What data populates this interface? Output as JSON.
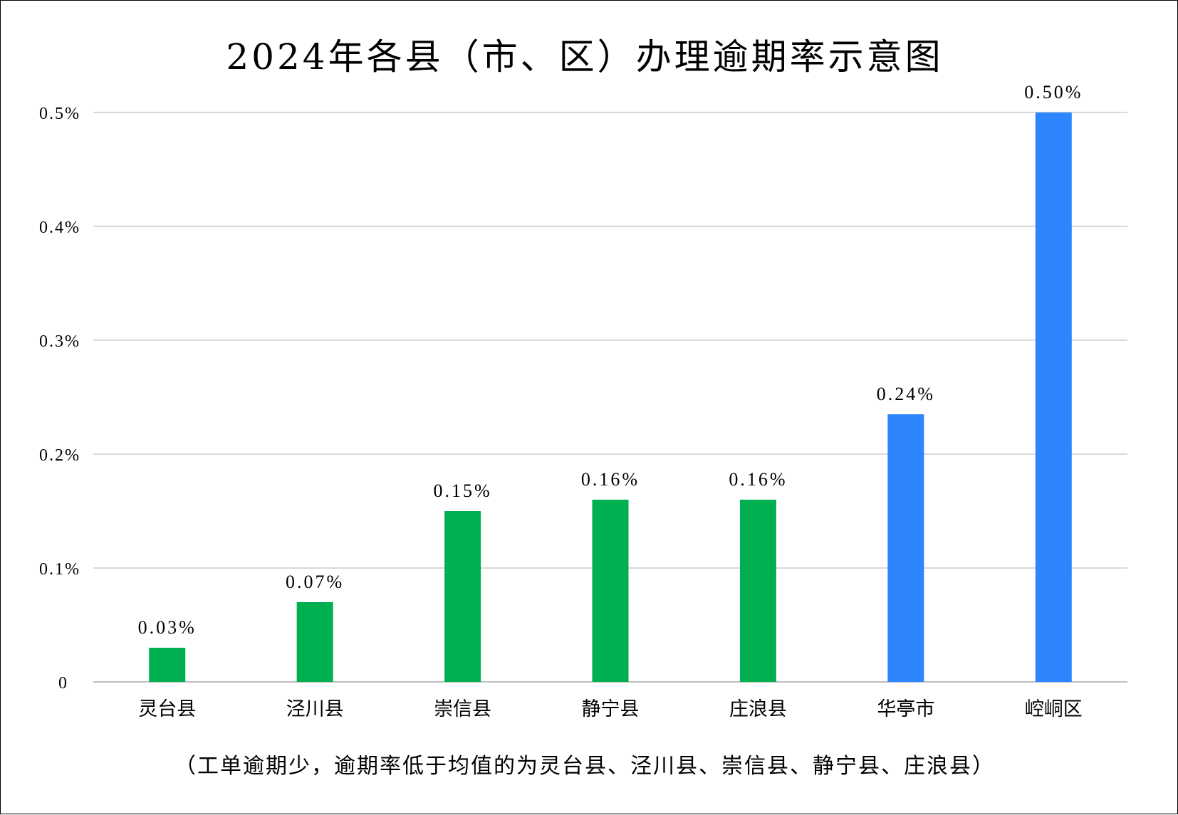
{
  "chart_data": {
    "type": "bar",
    "title": "2024年各县（市、区）办理逾期率示意图",
    "categories": [
      "灵台县",
      "泾川县",
      "崇信县",
      "静宁县",
      "庄浪县",
      "华亭市",
      "崆峒区"
    ],
    "values": [
      0.03,
      0.07,
      0.15,
      0.16,
      0.16,
      0.235,
      0.5
    ],
    "data_labels": [
      "0.03%",
      "0.07%",
      "0.15%",
      "0.16%",
      "0.16%",
      "0.24%",
      "0.50%"
    ],
    "bar_colors": [
      "#00b050",
      "#00b050",
      "#00b050",
      "#00b050",
      "#00b050",
      "#2e86ff",
      "#2e86ff"
    ],
    "yticks": [
      0,
      0.1,
      0.2,
      0.3,
      0.4,
      0.5
    ],
    "ytick_labels": [
      "0",
      "0.1%",
      "0.2%",
      "0.3%",
      "0.4%",
      "0.5%"
    ],
    "ylim": [
      0,
      0.5
    ],
    "grid": true,
    "xlabel": "",
    "ylabel": "",
    "note": "（工单逾期少，逾期率低于均值的为灵台县、泾川县、崇信县、静宁县、庄浪县）"
  }
}
